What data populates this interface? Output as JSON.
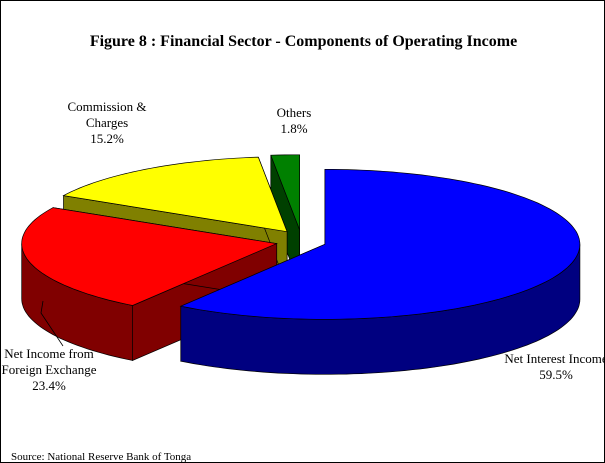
{
  "chart_data": {
    "type": "pie",
    "title": "Figure 8 : Financial Sector - Components of Operating Income",
    "categories": [
      "Net Interest Income",
      "Net Income from Foreign Exchange",
      "Commission & Charges",
      "Others"
    ],
    "values": [
      59.5,
      23.4,
      15.2,
      1.8
    ],
    "value_labels": [
      "59.5%",
      "23.4%",
      "15.2%",
      "1.8%"
    ],
    "colors": [
      "#0000ff",
      "#ff0000",
      "#ffff00",
      "#008000"
    ],
    "side_colors": [
      "#000080",
      "#800000",
      "#808000",
      "#004000"
    ],
    "source": "Source: National Reserve Bank of Tonga"
  }
}
